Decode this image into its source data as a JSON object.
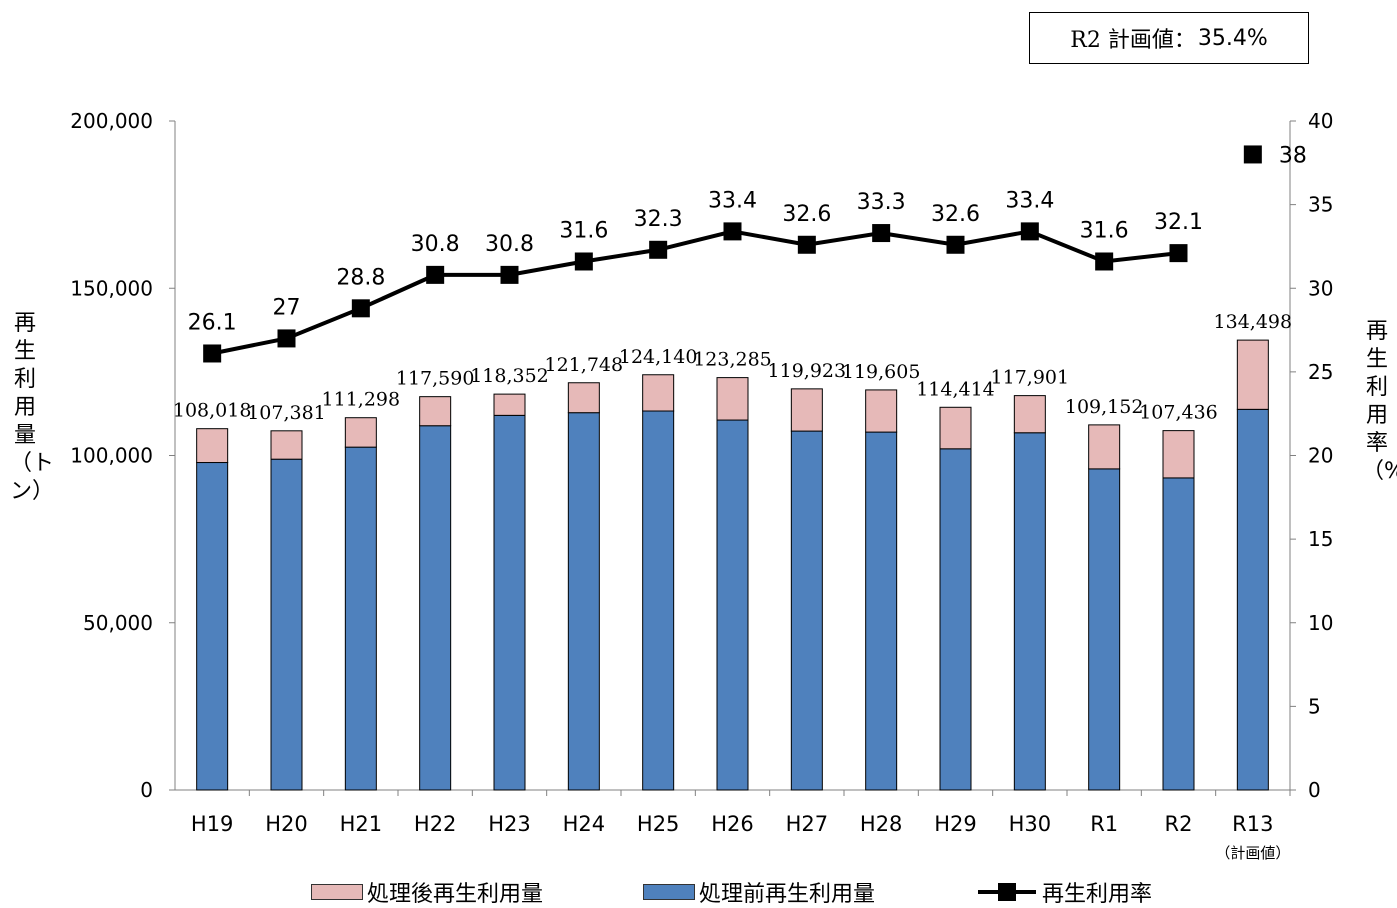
{
  "note": {
    "label": "R2 計画値：",
    "value": "35.4%"
  },
  "legend": {
    "post": "処理後再生利用量",
    "pre": "処理前再生利用量",
    "rate": "再生利用率"
  },
  "colors": {
    "pre": "#4f81bd",
    "post": "#e6b9b8",
    "rate": "#000000"
  },
  "chart_data": {
    "type": "bar",
    "categories": [
      "H19",
      "H20",
      "H21",
      "H22",
      "H23",
      "H24",
      "H25",
      "H26",
      "H27",
      "H28",
      "H29",
      "H30",
      "R1",
      "R2",
      "R13"
    ],
    "category_note": {
      "index": 14,
      "text": "（計画値）"
    },
    "ylabel": "再生利用量（トン）",
    "y2label": "再生利用率（%）",
    "ylim": [
      0,
      200000
    ],
    "y2lim": [
      0,
      40
    ],
    "yticks": [
      "0",
      "50,000",
      "100,000",
      "150,000",
      "200,000"
    ],
    "y2ticks": [
      "0",
      "5",
      "10",
      "15",
      "20",
      "25",
      "30",
      "35",
      "40"
    ],
    "grid": false,
    "legend_position": "bottom",
    "series": [
      {
        "name": "処理前再生利用量",
        "stack": true,
        "values": [
          97900,
          98900,
          102500,
          108900,
          112000,
          112800,
          113300,
          110600,
          107300,
          107000,
          102000,
          106800,
          96000,
          93300,
          113800
        ]
      },
      {
        "name": "処理後再生利用量",
        "stack": true,
        "values": [
          10118,
          8481,
          8798,
          8690,
          6352,
          8948,
          10840,
          12685,
          12623,
          12605,
          12414,
          11101,
          13152,
          14136,
          20698
        ]
      }
    ],
    "totals_labels": [
      "108,018",
      "107,381",
      "111,298",
      "117,590",
      "118,352",
      "121,748",
      "124,140",
      "123,285",
      "119,923",
      "119,605",
      "114,414",
      "117,901",
      "109,152",
      "107,436",
      "134,498"
    ],
    "line": {
      "name": "再生利用率",
      "axis": "right",
      "values": [
        26.1,
        27,
        28.8,
        30.8,
        30.8,
        31.6,
        32.3,
        33.4,
        32.6,
        33.3,
        32.6,
        33.4,
        31.6,
        32.1,
        null
      ],
      "labels": [
        "26.1",
        "27",
        "28.8",
        "30.8",
        "30.8",
        "31.6",
        "32.3",
        "33.4",
        "32.6",
        "33.3",
        "32.6",
        "33.4",
        "31.6",
        "32.1",
        ""
      ]
    },
    "target_point": {
      "category_index": 14,
      "value": 38,
      "label": "38"
    }
  }
}
